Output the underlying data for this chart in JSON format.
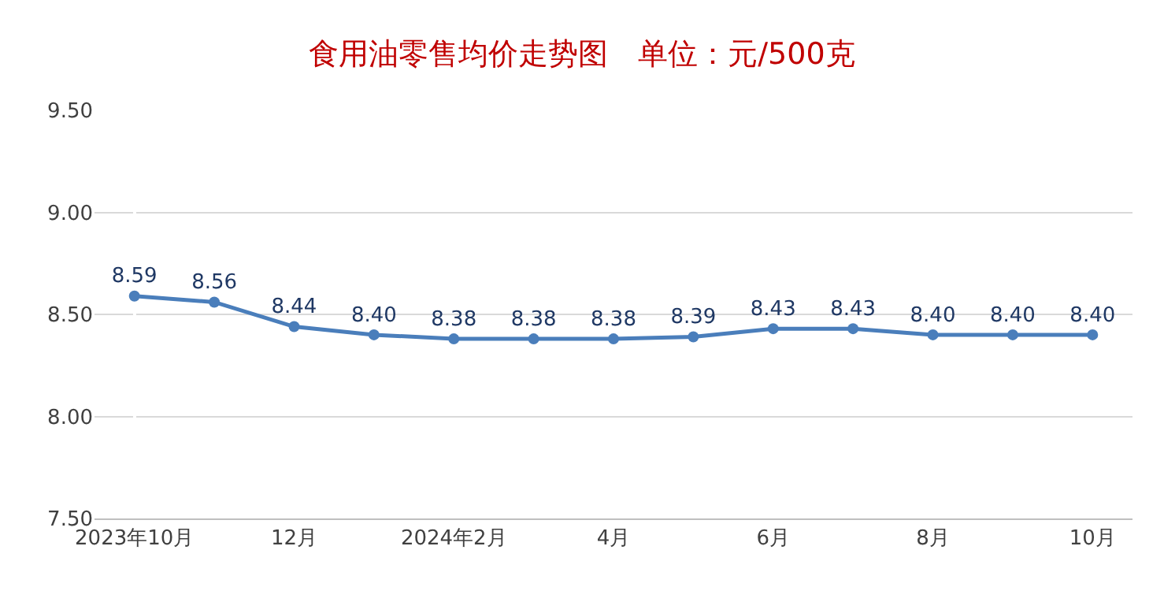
{
  "chart_data": {
    "type": "line",
    "title": "食用油零售均价走势图　单位：元/500克",
    "categories": [
      "2023年10月",
      null,
      "12月",
      null,
      "2024年2月",
      null,
      "4月",
      null,
      "6月",
      null,
      "8月",
      null,
      "10月"
    ],
    "series": [
      {
        "color": "#4a7ebb",
        "values": [
          8.59,
          8.56,
          8.44,
          8.4,
          8.38,
          8.38,
          8.38,
          8.39,
          8.43,
          8.43,
          8.4,
          8.4,
          8.4
        ],
        "value_labels": [
          "8.59",
          "8.56",
          "8.44",
          "8.40",
          "8.38",
          "8.38",
          "8.38",
          "8.39",
          "8.43",
          "8.43",
          "8.40",
          "8.40",
          "8.40"
        ]
      }
    ],
    "ylim": [
      7.5,
      9.5
    ],
    "yticks": [
      {
        "value": 7.5,
        "label": "7.50"
      },
      {
        "value": 8.0,
        "label": "8.00"
      },
      {
        "value": 8.5,
        "label": "8.50"
      },
      {
        "value": 9.0,
        "label": "9.00"
      },
      {
        "value": 9.5,
        "label": "9.50"
      }
    ],
    "grid": "y",
    "legend": false,
    "marker": "circle",
    "line_style": "solid"
  }
}
